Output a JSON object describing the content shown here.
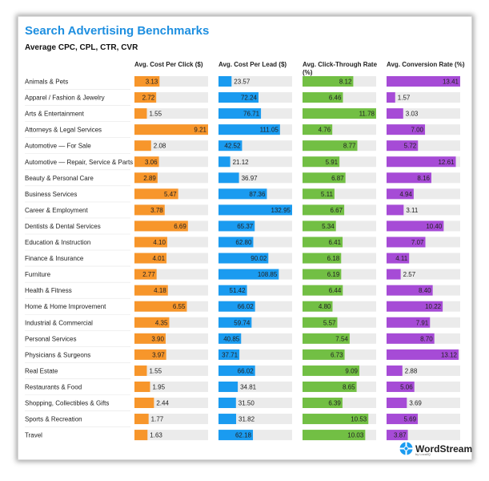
{
  "title": "Search Advertising Benchmarks",
  "subtitle": "Average CPC, CPL, CTR, CVR",
  "brand": {
    "name": "WordStream",
    "byline": "by LocaliQ"
  },
  "columns": [
    {
      "key": "cpc",
      "header": "Avg. Cost Per Click ($)",
      "color": "#f7962b"
    },
    {
      "key": "cpl",
      "header": "Avg. Cost Per Lead ($)",
      "color": "#1a9bf0"
    },
    {
      "key": "ctr",
      "header": "Avg. Click-Through Rate (%)",
      "color": "#72bf44"
    },
    {
      "key": "cvr",
      "header": "Avg. Conversion Rate (%)",
      "color": "#a64bd6"
    }
  ],
  "chart_data": {
    "type": "bar",
    "title": "Search Advertising Benchmarks",
    "subtitle": "Average CPC, CPL, CTR, CVR",
    "categories": [
      "Animals & Pets",
      "Apparel / Fashion & Jewelry",
      "Arts & Entertainment",
      "Attorneys & Legal Services",
      "Automotive — For Sale",
      "Automotive — Repair, Service & Parts",
      "Beauty & Personal Care",
      "Business Services",
      "Career & Employment",
      "Dentists & Dental Services",
      "Education & Instruction",
      "Finance & Insurance",
      "Furniture",
      "Health & Fitness",
      "Home & Home Improvement",
      "Industrial & Commercial",
      "Personal Services",
      "Physicians & Surgeons",
      "Real Estate",
      "Restaurants & Food",
      "Shopping, Collectibles & Gifts",
      "Sports & Recreation",
      "Travel"
    ],
    "series": [
      {
        "name": "Avg. Cost Per Click ($)",
        "values": [
          3.13,
          2.72,
          1.55,
          9.21,
          2.08,
          3.06,
          2.89,
          5.47,
          3.78,
          6.69,
          4.1,
          4.01,
          2.77,
          4.18,
          6.55,
          4.35,
          3.9,
          3.97,
          1.55,
          1.95,
          2.44,
          1.77,
          1.63
        ]
      },
      {
        "name": "Avg. Cost Per Lead ($)",
        "values": [
          23.57,
          72.24,
          76.71,
          111.05,
          42.52,
          21.12,
          36.97,
          87.36,
          132.95,
          65.37,
          62.8,
          90.02,
          108.85,
          51.42,
          66.02,
          59.74,
          40.85,
          37.71,
          66.02,
          34.81,
          31.5,
          31.82,
          62.18
        ]
      },
      {
        "name": "Avg. Click-Through Rate (%)",
        "values": [
          8.12,
          6.46,
          11.78,
          4.76,
          8.77,
          5.91,
          6.87,
          5.11,
          6.67,
          5.34,
          6.41,
          6.18,
          6.19,
          6.44,
          4.8,
          5.57,
          7.54,
          6.73,
          9.09,
          8.65,
          6.39,
          10.53,
          10.03
        ]
      },
      {
        "name": "Avg. Conversion Rate (%)",
        "values": [
          13.41,
          1.57,
          3.03,
          7.0,
          5.72,
          12.61,
          8.16,
          4.94,
          3.11,
          10.4,
          7.07,
          4.11,
          2.57,
          8.4,
          10.22,
          7.91,
          8.7,
          13.12,
          2.88,
          5.06,
          3.69,
          5.69,
          3.87
        ]
      }
    ],
    "value_labels": [
      [
        "3.13",
        "2.72",
        "1.55",
        "9.21",
        "2.08",
        "3.06",
        "2.89",
        "5.47",
        "3.78",
        "6.69",
        "4.10",
        "4.01",
        "2.77",
        "4.18",
        "6.55",
        "4.35",
        "3.90",
        "3.97",
        "1.55",
        "1.95",
        "2.44",
        "1.77",
        "1.63"
      ],
      [
        "23.57",
        "72.24",
        "76.71",
        "111.05",
        "42.52",
        "21.12",
        "36.97",
        "87.36",
        "132.95",
        "65.37",
        "62.80",
        "90.02",
        "108.85",
        "51.42",
        "66.02",
        "59.74",
        "40.85",
        "37.71",
        "66.02",
        "34.81",
        "31.50",
        "31.82",
        "62.18"
      ],
      [
        "8.12",
        "6.46",
        "11.78",
        "4.76",
        "8.77",
        "5.91",
        "6.87",
        "5.11",
        "6.67",
        "5.34",
        "6.41",
        "6.18",
        "6.19",
        "6.44",
        "4.80",
        "5.57",
        "7.54",
        "6.73",
        "9.09",
        "8.65",
        "6.39",
        "10.53",
        "10.03"
      ],
      [
        "13.41",
        "1.57",
        "3.03",
        "7.00",
        "5.72",
        "12.61",
        "8.16",
        "4.94",
        "3.11",
        "10.40",
        "7.07",
        "4.11",
        "2.57",
        "8.40",
        "10.22",
        "7.91",
        "8.70",
        "13.12",
        "2.88",
        "5.06",
        "3.69",
        "5.69",
        "3.87"
      ]
    ],
    "scale_max": [
      9.21,
      132.95,
      11.78,
      13.41
    ],
    "grid": false,
    "legend": "none"
  }
}
